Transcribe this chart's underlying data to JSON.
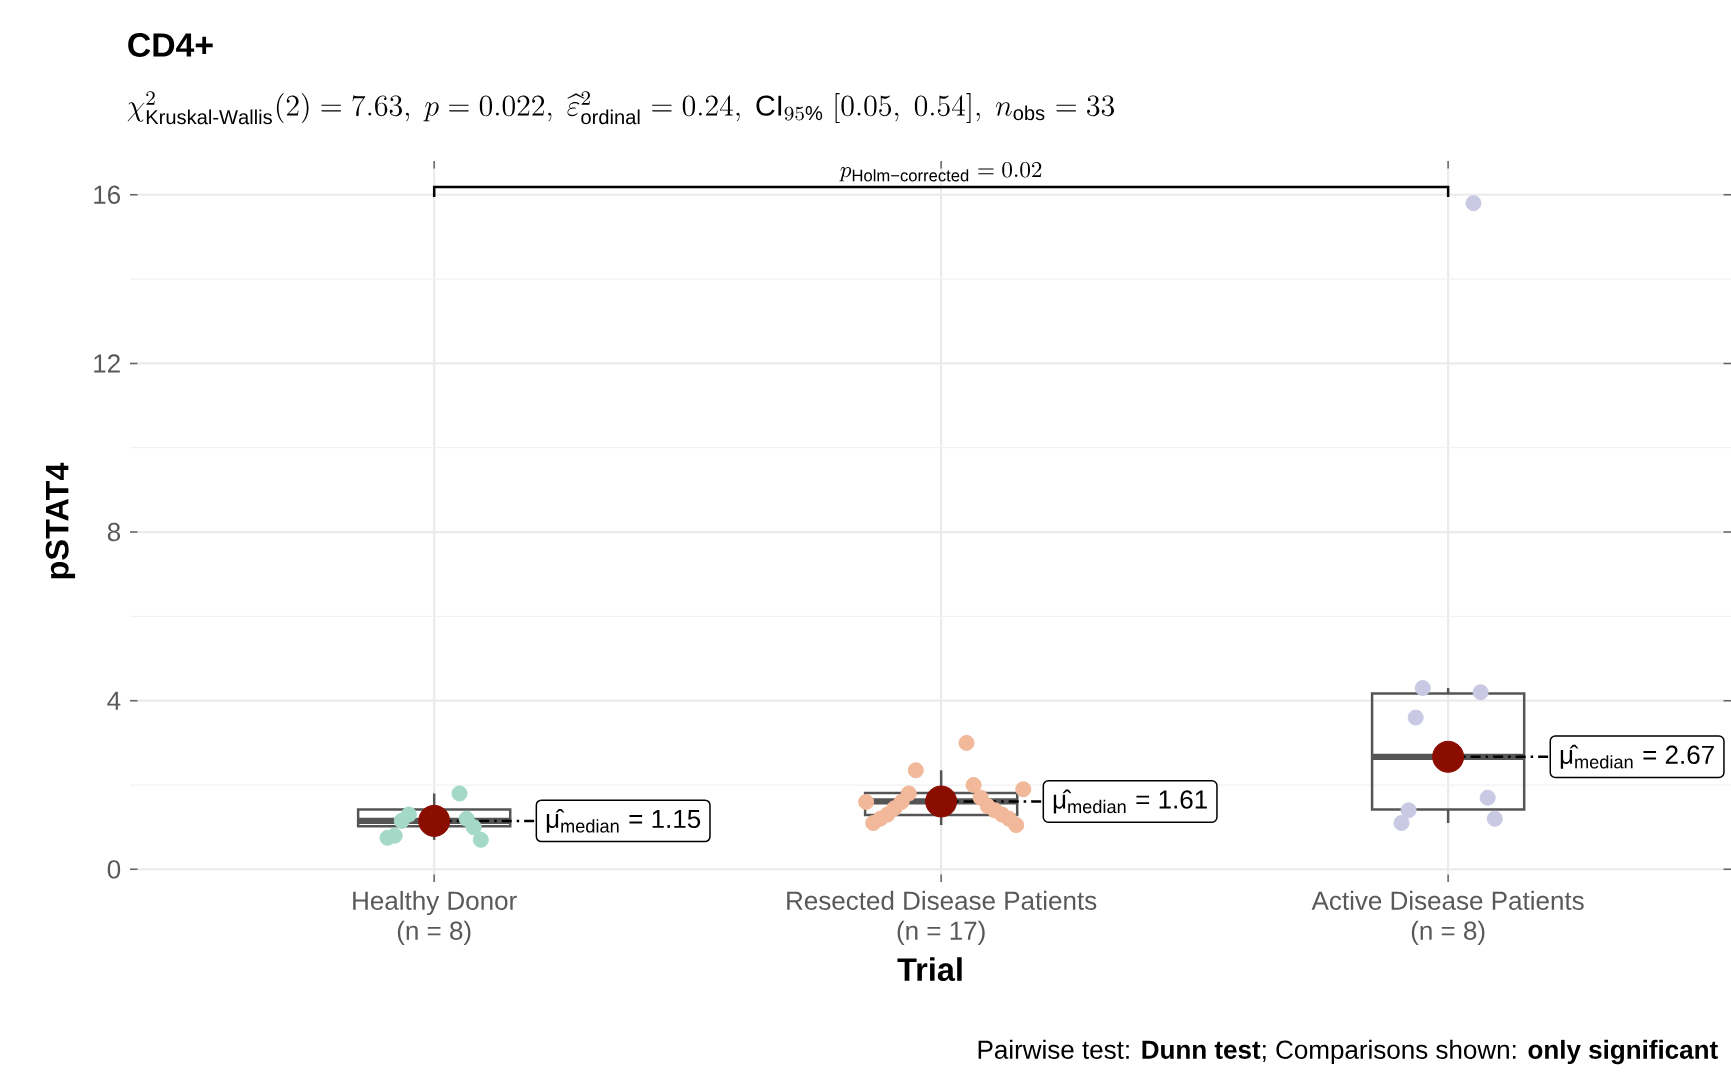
{
  "chart_data": {
    "type": "box",
    "title": "CD4+",
    "subtitle": "\\chi^{2}_{\\mathrm{Kruskal\\text{-}Wallis}}(2) = 7.63,\\ p = 0.022,\\ \\widehat{\\varepsilon}^{2}_{\\mathrm{ordinal}} = 0.24,\\ \\mathrm{CI}_{95\\%}\\ [0.05,\\ 0.54],\\ n_{\\mathrm{obs}} = 33",
    "xlabel": "Trial",
    "ylabel": "pSTAT4",
    "categories": [
      "Healthy Donor\n(n = 8)",
      "Resected Disease Patients\n(n = 17)",
      "Active Disease Patients\n(n = 8)"
    ],
    "ylim": [
      -0.3,
      16.8
    ],
    "yticks": [
      0,
      {
        "value": 2,
        "label": null
      },
      4,
      {
        "value": 6,
        "label": null
      },
      8,
      {
        "value": 10,
        "label": null
      },
      12,
      {
        "value": 14,
        "label": null
      },
      16
    ],
    "grid": true,
    "marker": "circle",
    "series": [
      {
        "color": "#555555",
        "boxes": [
          {
            "low": 0.7,
            "q1": 1.02,
            "median": 1.15,
            "q3": 1.42,
            "high": 1.8
          },
          {
            "low": 1.05,
            "q1": 1.29,
            "median": 1.61,
            "q3": 1.81,
            "high": 2.35
          },
          {
            "low": 1.1,
            "q1": 1.42,
            "median": 2.67,
            "q3": 4.17,
            "high": 4.3
          }
        ]
      },
      {
        "type": "scatter",
        "x": [
          "Healthy Donor\n(n = 8)",
          "Healthy Donor\n(n = 8)",
          "Healthy Donor\n(n = 8)",
          "Healthy Donor\n(n = 8)",
          "Healthy Donor\n(n = 8)",
          "Healthy Donor\n(n = 8)",
          "Healthy Donor\n(n = 8)",
          "Healthy Donor\n(n = 8)",
          "Resected Disease Patients\n(n = 17)",
          "Resected Disease Patients\n(n = 17)",
          "Resected Disease Patients\n(n = 17)",
          "Resected Disease Patients\n(n = 17)",
          "Resected Disease Patients\n(n = 17)",
          "Resected Disease Patients\n(n = 17)",
          "Resected Disease Patients\n(n = 17)",
          "Resected Disease Patients\n(n = 17)",
          "Resected Disease Patients\n(n = 17)",
          "Resected Disease Patients\n(n = 17)",
          "Resected Disease Patients\n(n = 17)",
          "Resected Disease Patients\n(n = 17)",
          "Resected Disease Patients\n(n = 17)",
          "Resected Disease Patients\n(n = 17)",
          "Resected Disease Patients\n(n = 17)",
          "Resected Disease Patients\n(n = 17)",
          "Resected Disease Patients\n(n = 17)",
          "Active Disease Patients\n(n = 8)",
          "Active Disease Patients\n(n = 8)",
          "Active Disease Patients\n(n = 8)",
          "Active Disease Patients\n(n = 8)",
          "Active Disease Patients\n(n = 8)",
          "Active Disease Patients\n(n = 8)",
          "Active Disease Patients\n(n = 8)",
          "Active Disease Patients\n(n = 8)"
        ],
        "values": [
          1.8,
          1.3,
          1.2,
          1.15,
          1.0,
          0.8,
          0.7,
          0.75,
          3.0,
          2.35,
          2.0,
          1.8,
          1.7,
          1.6,
          1.5,
          1.45,
          1.4,
          1.3,
          1.3,
          1.2,
          1.2,
          1.1,
          1.05,
          1.6,
          1.9,
          15.8,
          4.3,
          4.2,
          3.6,
          1.7,
          1.4,
          1.2,
          1.1
        ],
        "colors": [
          "#a3d9c6",
          "#a3d9c6",
          "#a3d9c6",
          "#a3d9c6",
          "#a3d9c6",
          "#a3d9c6",
          "#a3d9c6",
          "#a3d9c6",
          "#f1b89a",
          "#f1b89a",
          "#f1b89a",
          "#f1b89a",
          "#f1b89a",
          "#f1b89a",
          "#f1b89a",
          "#f1b89a",
          "#f1b89a",
          "#f1b89a",
          "#f1b89a",
          "#f1b89a",
          "#f1b89a",
          "#f1b89a",
          "#f1b89a",
          "#f1b89a",
          "#f1b89a",
          "#c9c9e4",
          "#c9c9e4",
          "#c9c9e4",
          "#c9c9e4",
          "#c9c9e4",
          "#c9c9e4",
          "#c9c9e4",
          "#c9c9e4"
        ]
      },
      {
        "type": "scatter",
        "color": "#8b0d00",
        "x": [
          "Healthy Donor\n(n = 8)",
          "Resected Disease Patients\n(n = 17)",
          "Active Disease Patients\n(n = 8)"
        ],
        "values": [
          1.15,
          1.61,
          2.67
        ]
      }
    ],
    "annotations": [
      "p_{\\mathrm{Holm\\text{−}corrected}} = 0.02",
      {
        "text": "μ̂$_{median}$ = 1.15",
        "x": "Healthy Donor\n(n = 8)",
        "y": 1.15
      },
      {
        "text": "μ̂$_{median}$ = 1.61",
        "x": "Resected Disease Patients\n(n = 17)",
        "y": 1.61
      },
      {
        "text": "μ̂$_{median}$ = 2.67",
        "x": "Active Disease Patients\n(n = 8)",
        "y": 2.67
      },
      "Pairwise test: **Dunn test**; Comparisons shown: **only significant**"
    ]
  }
}
